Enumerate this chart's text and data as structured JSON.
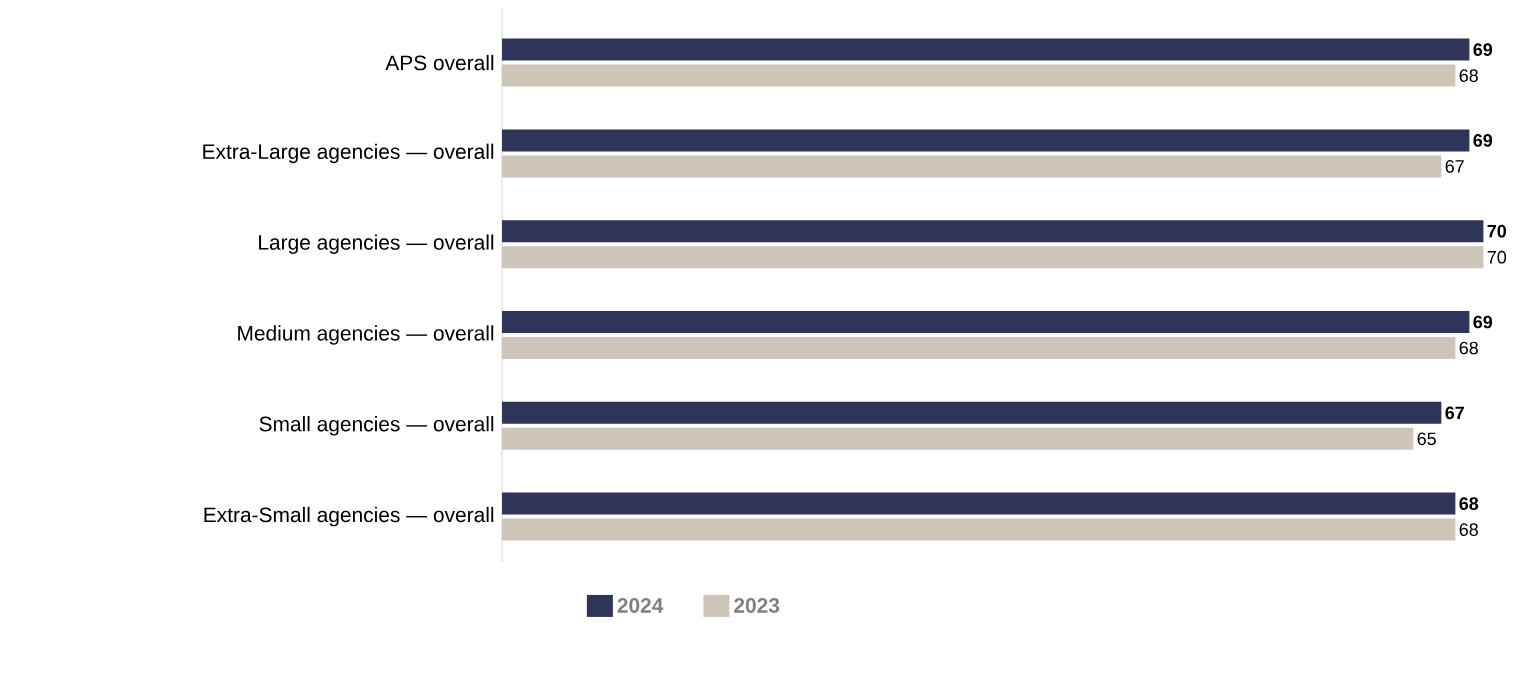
{
  "chart_data": {
    "type": "bar",
    "orientation": "horizontal",
    "categories": [
      "APS overall",
      "Extra-Large agencies — overall",
      "Large agencies — overall",
      "Medium agencies — overall",
      "Small agencies — overall",
      "Extra-Small agencies — overall"
    ],
    "series": [
      {
        "name": "2024",
        "color": "#2e3559",
        "values": [
          69,
          69,
          70,
          69,
          67,
          68
        ]
      },
      {
        "name": "2023",
        "color": "#cdc6b8",
        "values": [
          68,
          67,
          70,
          68,
          65,
          68
        ]
      }
    ],
    "data_labels": true,
    "legend": "bottom"
  }
}
